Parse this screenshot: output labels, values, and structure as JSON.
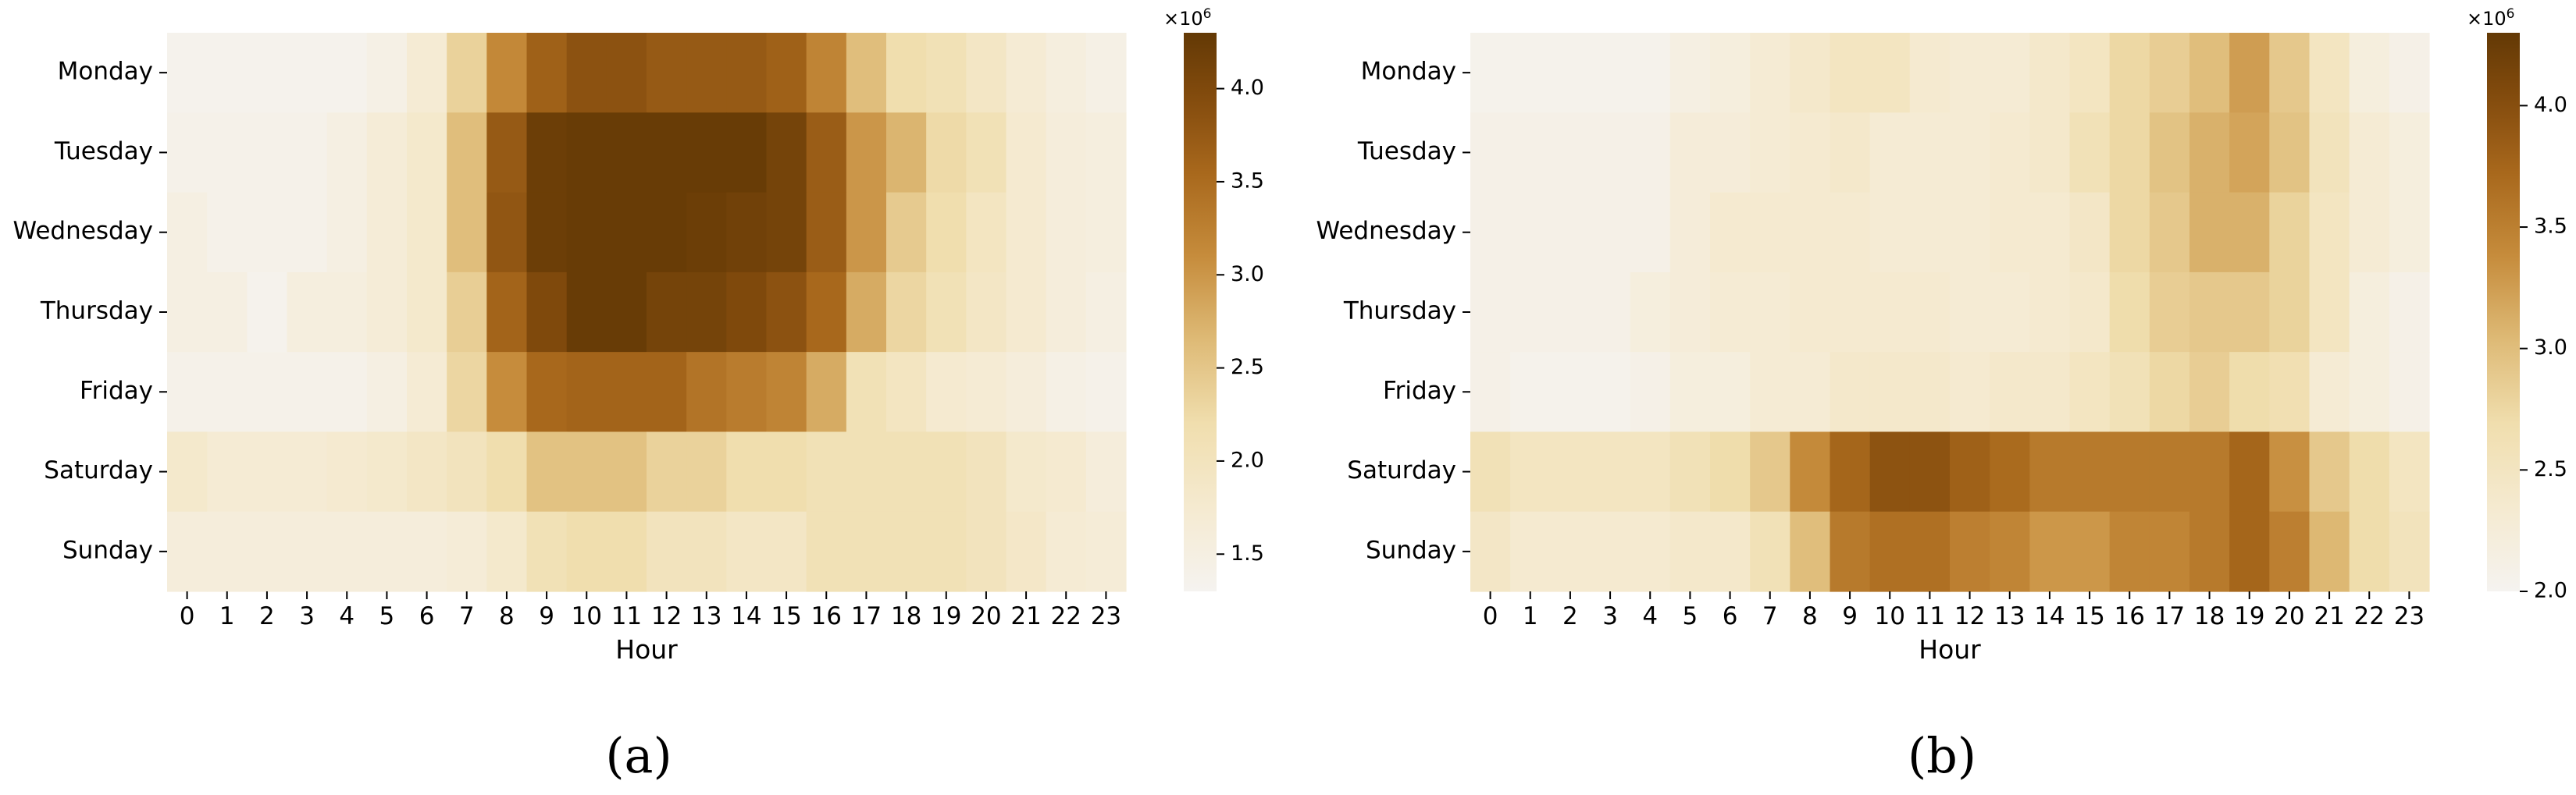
{
  "chart_data": [
    {
      "type": "heatmap",
      "caption": "(a)",
      "xlabel": "Hour",
      "ylabel": "",
      "x_categories": [
        "0",
        "1",
        "2",
        "3",
        "4",
        "5",
        "6",
        "7",
        "8",
        "9",
        "10",
        "11",
        "12",
        "13",
        "14",
        "15",
        "16",
        "17",
        "18",
        "19",
        "20",
        "21",
        "22",
        "23"
      ],
      "y_categories": [
        "Monday",
        "Tuesday",
        "Wednesday",
        "Thursday",
        "Friday",
        "Saturday",
        "Sunday"
      ],
      "colorbar": {
        "range": [
          1.3,
          4.3
        ],
        "ticks": [
          1.5,
          2.0,
          2.5,
          3.0,
          3.5,
          4.0
        ],
        "tick_labels": [
          "1.5",
          "2.0",
          "2.5",
          "3.0",
          "3.5",
          "4.0"
        ],
        "multiplier": "×10",
        "exponent": "6"
      },
      "values": [
        [
          1.35,
          1.35,
          1.35,
          1.35,
          1.35,
          1.45,
          1.7,
          2.35,
          3.15,
          3.65,
          3.85,
          3.85,
          3.75,
          3.75,
          3.75,
          3.65,
          3.2,
          2.6,
          2.2,
          2.1,
          1.9,
          1.7,
          1.55,
          1.45
        ],
        [
          1.4,
          1.4,
          1.4,
          1.4,
          1.5,
          1.65,
          1.8,
          2.6,
          3.75,
          4.2,
          4.25,
          4.25,
          4.25,
          4.25,
          4.25,
          4.1,
          3.7,
          3.0,
          2.7,
          2.25,
          2.1,
          1.75,
          1.6,
          1.55
        ],
        [
          1.5,
          1.4,
          1.4,
          1.4,
          1.5,
          1.65,
          1.8,
          2.6,
          3.8,
          4.2,
          4.25,
          4.25,
          4.25,
          4.2,
          4.15,
          4.1,
          3.7,
          3.0,
          2.45,
          2.2,
          1.95,
          1.75,
          1.6,
          1.55
        ],
        [
          1.5,
          1.5,
          1.35,
          1.55,
          1.55,
          1.65,
          1.8,
          2.4,
          3.6,
          4.0,
          4.25,
          4.25,
          4.1,
          4.1,
          4.0,
          3.85,
          3.55,
          2.8,
          2.3,
          2.1,
          1.9,
          1.75,
          1.6,
          1.5
        ],
        [
          1.4,
          1.4,
          1.4,
          1.4,
          1.4,
          1.5,
          1.7,
          2.3,
          3.1,
          3.55,
          3.6,
          3.6,
          3.6,
          3.4,
          3.3,
          3.2,
          2.8,
          2.1,
          1.95,
          1.75,
          1.7,
          1.6,
          1.45,
          1.4
        ],
        [
          1.8,
          1.7,
          1.7,
          1.7,
          1.75,
          1.8,
          1.9,
          2.0,
          2.2,
          2.55,
          2.55,
          2.55,
          2.35,
          2.35,
          2.2,
          2.2,
          2.1,
          2.1,
          2.1,
          2.1,
          2.0,
          1.8,
          1.75,
          1.6
        ],
        [
          1.6,
          1.6,
          1.6,
          1.6,
          1.6,
          1.6,
          1.6,
          1.65,
          1.8,
          2.1,
          2.2,
          2.2,
          2.0,
          2.0,
          1.9,
          1.9,
          2.1,
          2.1,
          2.1,
          2.1,
          2.0,
          1.85,
          1.7,
          1.65
        ]
      ]
    },
    {
      "type": "heatmap",
      "caption": "(b)",
      "xlabel": "Hour",
      "ylabel": "",
      "x_categories": [
        "0",
        "1",
        "2",
        "3",
        "4",
        "5",
        "6",
        "7",
        "8",
        "9",
        "10",
        "11",
        "12",
        "13",
        "14",
        "15",
        "16",
        "17",
        "18",
        "19",
        "20",
        "21",
        "22",
        "23"
      ],
      "y_categories": [
        "Monday",
        "Tuesday",
        "Wednesday",
        "Thursday",
        "Friday",
        "Saturday",
        "Sunday"
      ],
      "colorbar": {
        "range": [
          2.0,
          4.3
        ],
        "ticks": [
          2.0,
          2.5,
          3.0,
          3.5,
          4.0
        ],
        "tick_labels": [
          "2.0",
          "2.5",
          "3.0",
          "3.5",
          "4.0"
        ],
        "multiplier": "×10",
        "exponent": "6"
      },
      "values": [
        [
          2.05,
          2.05,
          2.05,
          2.05,
          2.05,
          2.15,
          2.2,
          2.3,
          2.4,
          2.5,
          2.5,
          2.35,
          2.3,
          2.3,
          2.4,
          2.5,
          2.75,
          2.85,
          3.0,
          3.25,
          2.9,
          2.5,
          2.2,
          2.1
        ],
        [
          2.1,
          2.1,
          2.1,
          2.1,
          2.1,
          2.25,
          2.25,
          2.3,
          2.35,
          2.4,
          2.3,
          2.3,
          2.3,
          2.35,
          2.4,
          2.6,
          2.75,
          2.95,
          3.1,
          3.2,
          2.95,
          2.55,
          2.3,
          2.2
        ],
        [
          2.1,
          2.1,
          2.1,
          2.1,
          2.1,
          2.25,
          2.35,
          2.35,
          2.35,
          2.35,
          2.3,
          2.3,
          2.3,
          2.35,
          2.35,
          2.45,
          2.75,
          2.9,
          3.1,
          3.1,
          2.8,
          2.5,
          2.3,
          2.2
        ],
        [
          2.1,
          2.1,
          2.1,
          2.1,
          2.2,
          2.25,
          2.3,
          2.3,
          2.35,
          2.35,
          2.35,
          2.35,
          2.3,
          2.3,
          2.35,
          2.4,
          2.7,
          2.85,
          2.9,
          2.9,
          2.8,
          2.5,
          2.2,
          2.1
        ],
        [
          2.1,
          2.05,
          2.05,
          2.05,
          2.1,
          2.2,
          2.2,
          2.3,
          2.3,
          2.4,
          2.4,
          2.4,
          2.35,
          2.4,
          2.4,
          2.5,
          2.6,
          2.75,
          2.85,
          2.7,
          2.65,
          2.3,
          2.2,
          2.1
        ],
        [
          2.6,
          2.5,
          2.5,
          2.5,
          2.5,
          2.6,
          2.7,
          2.9,
          3.4,
          3.75,
          3.95,
          3.95,
          3.8,
          3.7,
          3.55,
          3.55,
          3.55,
          3.55,
          3.55,
          3.75,
          3.35,
          2.9,
          2.7,
          2.5
        ],
        [
          2.45,
          2.35,
          2.35,
          2.35,
          2.35,
          2.4,
          2.4,
          2.6,
          3.0,
          3.55,
          3.65,
          3.65,
          3.5,
          3.45,
          3.3,
          3.3,
          3.45,
          3.45,
          3.55,
          3.75,
          3.5,
          3.05,
          2.7,
          2.55
        ]
      ]
    }
  ]
}
